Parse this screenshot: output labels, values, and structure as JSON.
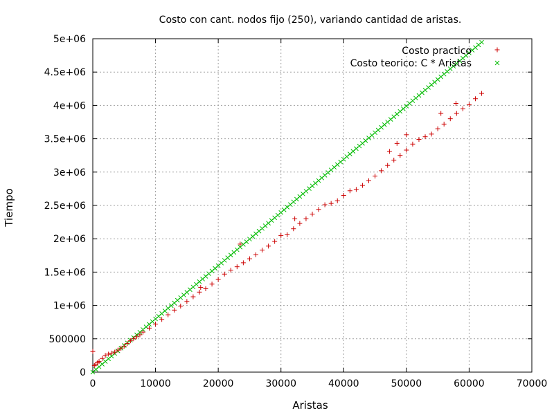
{
  "chart_data": {
    "type": "scatter",
    "title": "Costo con cant. nodos fijo (250), variando cantidad de aristas.",
    "xlabel": "Aristas",
    "ylabel": "Tiempo",
    "xlim": [
      0,
      70000
    ],
    "ylim": [
      0,
      5000000
    ],
    "xticks": [
      0,
      10000,
      20000,
      30000,
      40000,
      50000,
      60000,
      70000
    ],
    "yticks": [
      0,
      500000,
      1000000,
      1500000,
      2000000,
      2500000,
      3000000,
      3500000,
      4000000,
      4500000,
      5000000
    ],
    "xtick_labels": [
      "0",
      "10000",
      "20000",
      "30000",
      "40000",
      "50000",
      "60000",
      "70000"
    ],
    "ytick_labels": [
      "0",
      "500000",
      "1e+06",
      "1.5e+06",
      "2e+06",
      "2.5e+06",
      "3e+06",
      "3.5e+06",
      "4e+06",
      "4.5e+06",
      "5e+06"
    ],
    "grid": true,
    "legend_position": "top-right",
    "series": [
      {
        "name": "Costo practico",
        "marker": "plus",
        "color": "#cc0000",
        "x": [
          0,
          250,
          500,
          750,
          1000,
          1500,
          2000,
          2500,
          3000,
          3500,
          4000,
          4500,
          5000,
          5500,
          6000,
          6500,
          7000,
          7500,
          8000,
          9000,
          10000,
          11000,
          12000,
          13000,
          14000,
          15000,
          16000,
          17000,
          18000,
          19000,
          20000,
          21000,
          22000,
          23000,
          24000,
          25000,
          26000,
          27000,
          28000,
          29000,
          30000,
          31000,
          32000,
          33000,
          34000,
          35000,
          36000,
          37000,
          38000,
          39000,
          40000,
          41000,
          42000,
          43000,
          44000,
          45000,
          46000,
          47000,
          48000,
          49000,
          50000,
          51000,
          52000,
          53000,
          54000,
          55000,
          56000,
          57000,
          58000,
          59000,
          60000,
          61000,
          62000,
          17200,
          23500,
          32200,
          47300,
          48500,
          50000,
          55500,
          57900
        ],
        "y": [
          310000,
          100000,
          120000,
          140000,
          160000,
          205000,
          250000,
          270000,
          285000,
          300000,
          330000,
          360000,
          390000,
          430000,
          470000,
          500000,
          530000,
          560000,
          600000,
          660000,
          720000,
          790000,
          860000,
          930000,
          990000,
          1060000,
          1130000,
          1200000,
          1250000,
          1320000,
          1390000,
          1470000,
          1530000,
          1580000,
          1640000,
          1700000,
          1760000,
          1830000,
          1890000,
          1960000,
          2050000,
          2060000,
          2150000,
          2230000,
          2300000,
          2370000,
          2440000,
          2510000,
          2530000,
          2570000,
          2650000,
          2720000,
          2740000,
          2800000,
          2870000,
          2940000,
          3020000,
          3100000,
          3180000,
          3250000,
          3330000,
          3420000,
          3490000,
          3530000,
          3570000,
          3650000,
          3720000,
          3800000,
          3880000,
          3950000,
          4010000,
          4100000,
          4180000,
          1270000,
          1920000,
          2300000,
          3310000,
          3430000,
          3560000,
          3880000,
          4030000
        ]
      },
      {
        "name": "Costo teorico: C * Aristas",
        "marker": "cross",
        "color": "#00bb00",
        "slope": 79.8,
        "x_start": 0,
        "x_end": 62000,
        "x_step": 500
      }
    ]
  }
}
